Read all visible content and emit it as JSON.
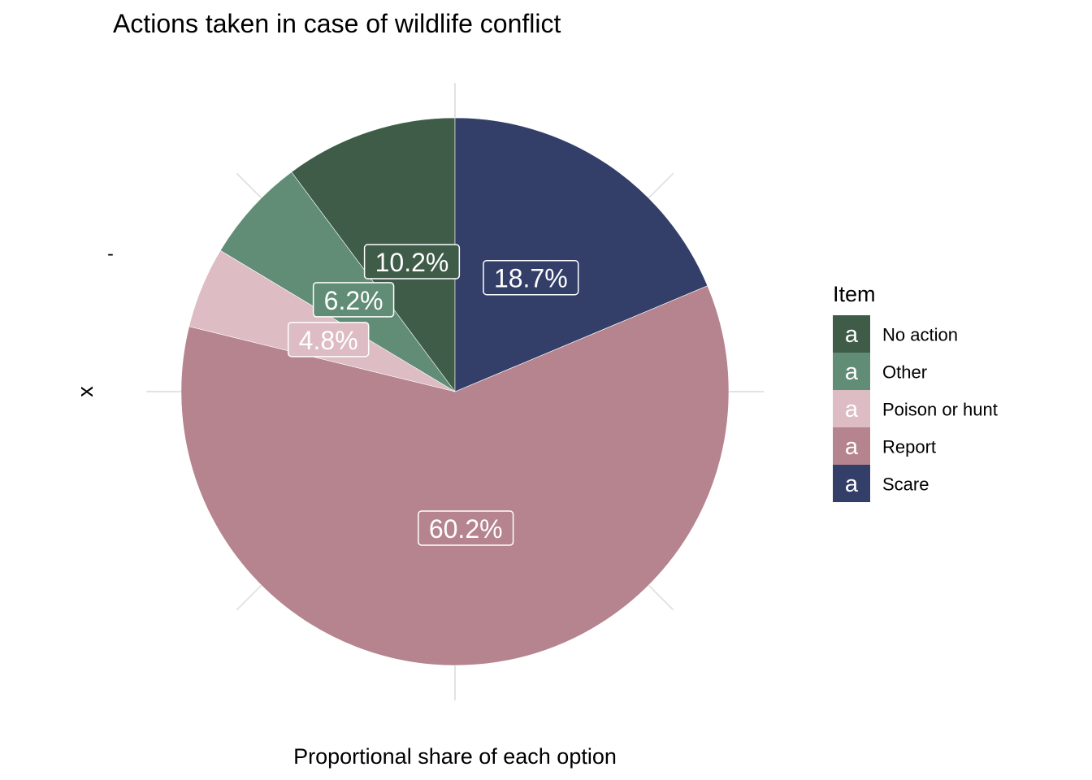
{
  "chart_data": {
    "type": "pie",
    "title": "Actions taken in case of wildlife conflict",
    "xlabel": "Proportional share of each option",
    "ylabel": "x",
    "y_tick_label": "-",
    "legend": {
      "title": "Item",
      "key_glyph": "a",
      "placement": "right"
    },
    "categories": [
      "No action",
      "Other",
      "Poison or hunt",
      "Report",
      "Scare"
    ],
    "values": [
      10.2,
      6.2,
      4.8,
      60.2,
      18.7
    ],
    "labels": [
      "10.2%",
      "6.2%",
      "4.8%",
      "60.2%",
      "18.7%"
    ],
    "colors": [
      "#3e5c47",
      "#618c76",
      "#ddbcc3",
      "#b5848e",
      "#333e69"
    ],
    "grid": true,
    "start": "12 o'clock",
    "direction": "counterclockwise"
  }
}
